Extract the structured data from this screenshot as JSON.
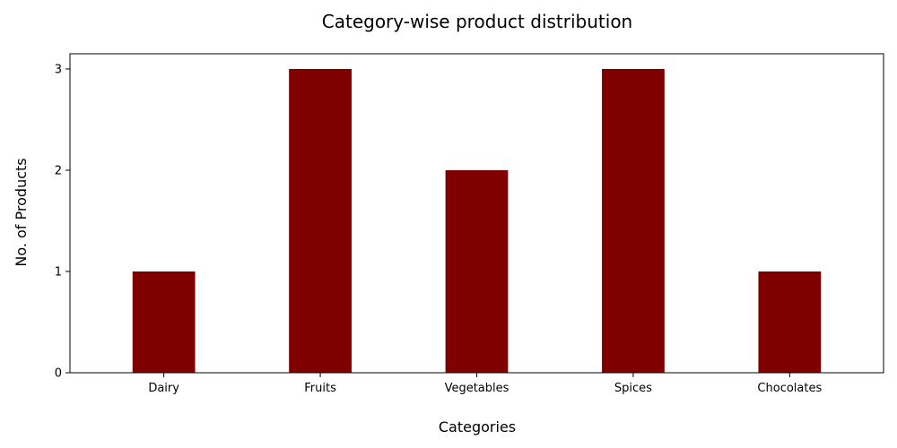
{
  "chart_data": {
    "type": "bar",
    "title": "Category-wise product distribution",
    "xlabel": "Categories",
    "ylabel": "No. of Products",
    "categories": [
      "Dairy",
      "Fruits",
      "Vegetables",
      "Spices",
      "Chocolates"
    ],
    "values": [
      1,
      3,
      2,
      3,
      1
    ],
    "ylim": [
      0,
      3.15
    ],
    "yticks": [
      0,
      1,
      2,
      3
    ],
    "grid": false,
    "legend": "none",
    "bar_color": "#800000"
  }
}
